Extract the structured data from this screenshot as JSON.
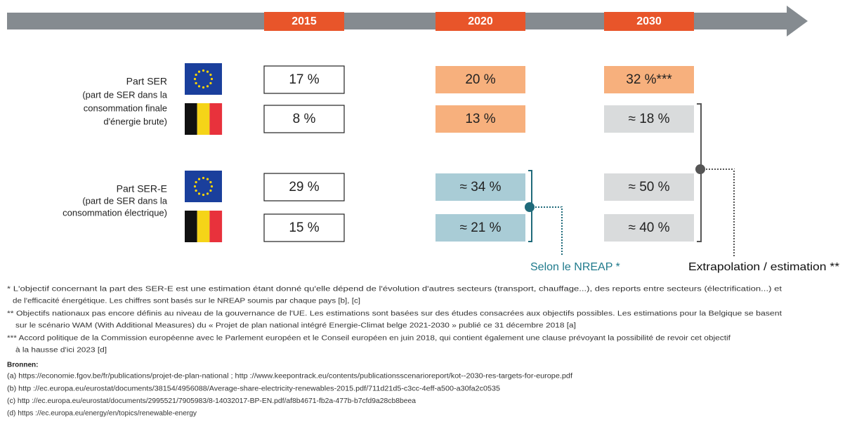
{
  "timeline": {
    "years": [
      "2015",
      "2020",
      "2030"
    ]
  },
  "groups": [
    {
      "label": [
        "Part SER",
        "(part de SER dans la",
        "consommation finale",
        "d'énergie brute)"
      ],
      "rows": [
        [
          "17 %",
          "20 %",
          "32 %***"
        ],
        [
          "8 %",
          "13 %",
          "≈ 18 %"
        ]
      ]
    },
    {
      "label": [
        "Part SER-E",
        "(part de SER dans la",
        "consommation électrique)"
      ],
      "rows": [
        [
          "29 %",
          "≈ 34 %",
          "≈ 50 %"
        ],
        [
          "15 %",
          "≈ 21 %",
          "≈ 40 %"
        ]
      ]
    }
  ],
  "notes": {
    "nreap": "Selon le NREAP *",
    "extrapolation": "Extrapolation / estimation **"
  },
  "footnotes": [
    [
      "* L'objectif concernant la part des SER-E est une estimation étant donné qu'elle dépend de l'évolution d'autres secteurs (transport, chauffage...), des reports entre secteurs (électrification...) et",
      "de l'efficacité énergétique. Les chiffres sont basés sur le NREAP soumis par chaque pays [b], [c]"
    ],
    [
      "** Objectifs nationaux pas encore définis au niveau de la gouvernance de l'UE. Les estimations sont basées sur des études consacrées aux objectifs possibles. Les estimations pour la Belgique se basent",
      "sur le scénario WAM (With Additional Measures) du « Projet de plan national intégré Energie-Climat belge 2021-2030 » publié ce 31 décembre 2018 [a]"
    ],
    [
      "*** Accord politique de la Commission européenne avec le Parlement européen et le Conseil européen en juin 2018, qui contient également une clause prévoyant la possibilité de revoir cet objectif",
      "à la hausse d'ici 2023 [d]"
    ]
  ],
  "sources": {
    "title": "Bronnen:",
    "items": [
      "(a)  https://economie.fgov.be/fr/publications/projet-de-plan-national ; http ://www.keepontrack.eu/contents/publicationsscenarioreport/kot--2030-res-targets-for-europe.pdf",
      "(b) http ://ec.europa.eu/eurostat/documents/38154/4956088/Average-share-electricity-renewables-2015.pdf/711d21d5-c3cc-4eff-a500-a30fa2c0535",
      "(c) http ://ec.europa.eu/eurostat/documents/2995521/7905983/8-14032017-BP-EN.pdf/af8b4671-fb2a-477b-b7cfd9a28cb8beea",
      "(d) https ://ec.europa.eu/energy/en/topics/renewable-energy"
    ]
  }
}
